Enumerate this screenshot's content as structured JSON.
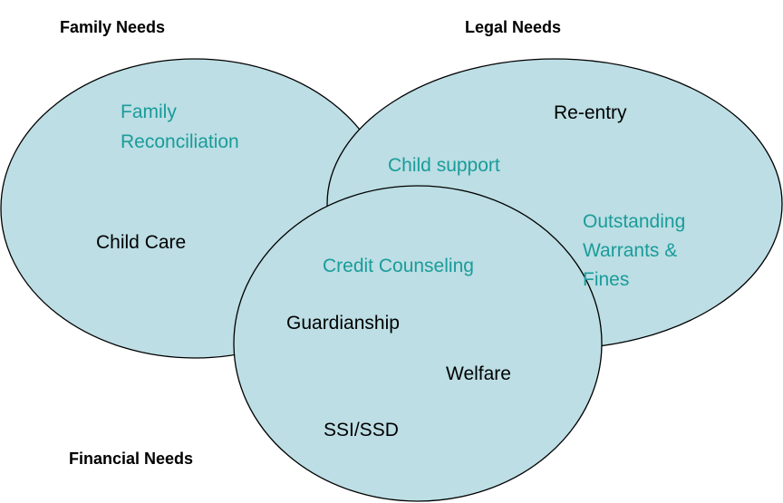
{
  "diagram": {
    "sets": [
      {
        "title": "Family Needs",
        "items": [
          {
            "lines": [
              "Family",
              "Reconciliation"
            ],
            "color": "#1a9c9a"
          },
          {
            "lines": [
              "Child Care"
            ],
            "color": "#000000"
          }
        ]
      },
      {
        "title": "Legal Needs",
        "items": [
          {
            "lines": [
              "Re-entry"
            ],
            "color": "#000000"
          },
          {
            "lines": [
              "Child support"
            ],
            "color": "#1a9c9a"
          },
          {
            "lines": [
              "Outstanding",
              "Warrants &",
              "Fines"
            ],
            "color": "#1a9c9a"
          }
        ]
      },
      {
        "title": "Financial Needs",
        "items": [
          {
            "lines": [
              "Credit Counseling"
            ],
            "color": "#1a9c9a"
          },
          {
            "lines": [
              "Guardianship"
            ],
            "color": "#000000"
          },
          {
            "lines": [
              "Welfare"
            ],
            "color": "#000000"
          },
          {
            "lines": [
              "SSI/SSD"
            ],
            "color": "#000000"
          }
        ]
      }
    ]
  }
}
